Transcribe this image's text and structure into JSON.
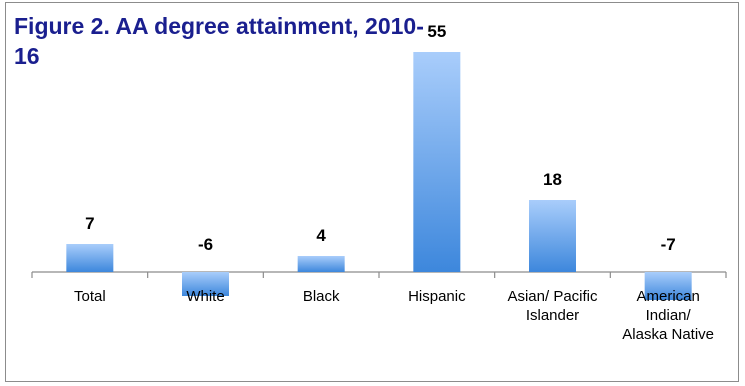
{
  "colors": {
    "title": "#1a1f8f",
    "bar_light": "#a9cdfb",
    "bar_dark": "#3d87dc",
    "axis": "#8c8c8c",
    "frame": "#8c8c8c"
  },
  "chart_data": {
    "type": "bar",
    "title": "Figure 2. AA degree attainment, 2010-16",
    "xlabel": "",
    "ylabel": "",
    "categories": [
      "Total",
      "White",
      "Black",
      "Hispanic",
      "Asian/ Pacific Islander",
      "American Indian/ Alaska Native"
    ],
    "category_lines": [
      [
        "Total"
      ],
      [
        "White"
      ],
      [
        "Black"
      ],
      [
        "Hispanic"
      ],
      [
        "Asian/ Pacific",
        "Islander"
      ],
      [
        "American",
        "Indian/",
        "Alaska Native"
      ]
    ],
    "values": [
      7,
      -6,
      4,
      55,
      18,
      -7
    ],
    "value_labels": [
      "7",
      "-6",
      "4",
      "55",
      "18",
      "-7"
    ],
    "ylim": [
      -8,
      58
    ],
    "grid": false,
    "legend": "none"
  }
}
